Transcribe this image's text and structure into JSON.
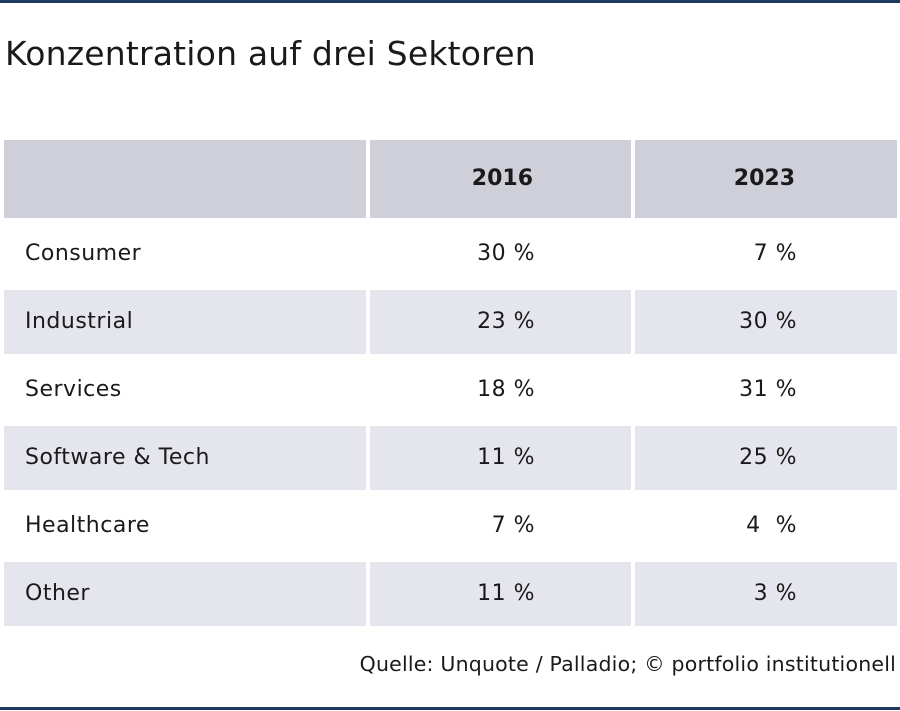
{
  "title": "Konzentration auf drei Sektoren",
  "source": "Quelle: Unquote / Palladio; © portfolio institutionell",
  "colors": {
    "rule": "#1f3a5f",
    "header_bg": "#cfcfd9",
    "row_shade": "#e5e5ee"
  },
  "chart_data": {
    "type": "table",
    "title": "Konzentration auf drei Sektoren",
    "columns": [
      "",
      "2016",
      "2023"
    ],
    "rows": [
      {
        "label": "Consumer",
        "y2016": "30 %",
        "y2023": "7 %"
      },
      {
        "label": "Industrial",
        "y2016": "23 %",
        "y2023": "30 %"
      },
      {
        "label": "Services",
        "y2016": "18 %",
        "y2023": "31 %"
      },
      {
        "label": "Software & Tech",
        "y2016": "11 %",
        "y2023": "25 %"
      },
      {
        "label": "Healthcare",
        "y2016": "7 %",
        "y2023": "4  %"
      },
      {
        "label": "Other",
        "y2016": "11 %",
        "y2023": "3 %"
      }
    ]
  }
}
